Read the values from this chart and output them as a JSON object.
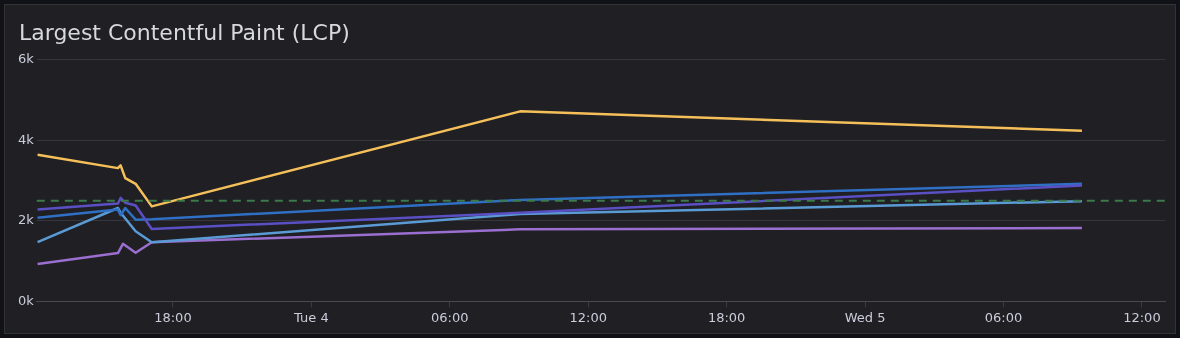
{
  "chart_data": {
    "type": "line",
    "title": "Largest Contentful Paint (LCP)",
    "xlim": [
      "--03-03T12:06",
      "--03-05T13:00"
    ],
    "xticks": [
      {
        "value": "--03-03T18:00",
        "label": "18:00"
      },
      {
        "value": "--03-04",
        "label": "Tue 4"
      },
      {
        "value": "--03-04T06:00",
        "label": "06:00"
      },
      {
        "value": "--03-04T12:00",
        "label": "12:00"
      },
      {
        "value": "--03-04T18:00",
        "label": "18:00"
      },
      {
        "value": "--03-05",
        "label": "Wed 5"
      },
      {
        "value": "--03-05T06:00",
        "label": "06:00"
      },
      {
        "value": "--03-05T12:00",
        "label": "12:00"
      }
    ],
    "ylim": [
      0,
      6000
    ],
    "yticks": [
      {
        "value": 0,
        "label": "0k"
      },
      {
        "value": 2000,
        "label": "2k"
      },
      {
        "value": 4000,
        "label": "4k"
      },
      {
        "value": 6000,
        "label": "6k"
      }
    ],
    "grid": "y",
    "legend": false,
    "marker": "none",
    "line_style": "solid",
    "series": [
      {
        "color": "#f5c05a",
        "x": [
          "--03-03T12:08",
          "--03-03T15:37",
          "--03-03T15:44",
          "--03-03T15:56",
          "--03-03T16:23",
          "--03-03T17:05",
          "--03-04T09:03",
          "--03-05T09:24"
        ],
        "values": [
          3640,
          3310,
          3380,
          3060,
          2920,
          2360,
          4720,
          4240
        ]
      },
      {
        "color": "#5b4fc4",
        "x": [
          "--03-03T12:08",
          "--03-03T15:37",
          "--03-03T15:44",
          "--03-03T15:56",
          "--03-03T16:23",
          "--03-03T17:05",
          "--03-04T09:03",
          "--03-05T09:24"
        ],
        "values": [
          2280,
          2430,
          2570,
          2450,
          2380,
          1800,
          2200,
          2880
        ]
      },
      {
        "color": "#2f6fc4",
        "x": [
          "--03-03T12:08",
          "--03-03T15:37",
          "--03-03T15:44",
          "--03-03T15:56",
          "--03-03T16:23",
          "--03-03T17:05",
          "--03-04T09:03",
          "--03-05T09:24"
        ],
        "values": [
          2080,
          2280,
          2140,
          2320,
          2030,
          2040,
          2520,
          2920
        ]
      },
      {
        "color": "#5b9bd5",
        "x": [
          "--03-03T12:08",
          "--03-03T15:37",
          "--03-03T15:44",
          "--03-03T16:23",
          "--03-03T17:05",
          "--03-04T09:03",
          "--03-05T09:24"
        ],
        "values": [
          1470,
          2320,
          2200,
          1740,
          1470,
          2170,
          2490
        ]
      },
      {
        "color": "#9a6fd0",
        "x": [
          "--03-03T12:08",
          "--03-03T15:37",
          "--03-03T15:50",
          "--03-03T16:23",
          "--03-03T17:05",
          "--03-04T09:03",
          "--03-05T09:24"
        ],
        "values": [
          930,
          1200,
          1430,
          1210,
          1470,
          1790,
          1820
        ]
      }
    ],
    "ref_lines": [
      {
        "axis": "y",
        "value": 2500,
        "color": "#3d7a4a",
        "line_style": "dashed"
      }
    ]
  }
}
